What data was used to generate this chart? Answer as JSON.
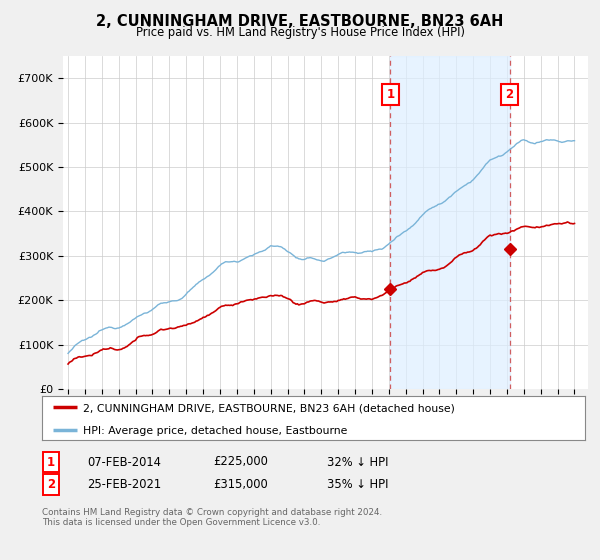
{
  "title": "2, CUNNINGHAM DRIVE, EASTBOURNE, BN23 6AH",
  "subtitle": "Price paid vs. HM Land Registry's House Price Index (HPI)",
  "ylabel_ticks": [
    "£0",
    "£100K",
    "£200K",
    "£300K",
    "£400K",
    "£500K",
    "£600K",
    "£700K"
  ],
  "ytick_values": [
    0,
    100000,
    200000,
    300000,
    400000,
    500000,
    600000,
    700000
  ],
  "ylim": [
    0,
    750000
  ],
  "xlim_start": 1994.7,
  "xlim_end": 2025.8,
  "hpi_color": "#7ab4d8",
  "hpi_fill_color": "#ddeeff",
  "price_color": "#cc0000",
  "marker1_x": 2014.1,
  "marker1_y": 225000,
  "marker2_x": 2021.15,
  "marker2_y": 315000,
  "marker1_label": "1",
  "marker2_label": "2",
  "sale1_date": "07-FEB-2014",
  "sale1_price": "£225,000",
  "sale1_hpi": "32% ↓ HPI",
  "sale2_date": "25-FEB-2021",
  "sale2_price": "£315,000",
  "sale2_hpi": "35% ↓ HPI",
  "legend_property": "2, CUNNINGHAM DRIVE, EASTBOURNE, BN23 6AH (detached house)",
  "legend_hpi": "HPI: Average price, detached house, Eastbourne",
  "footnote": "Contains HM Land Registry data © Crown copyright and database right 2024.\nThis data is licensed under the Open Government Licence v3.0.",
  "background_color": "#f0f0f0",
  "plot_bg_color": "#ffffff",
  "grid_color": "#cccccc"
}
